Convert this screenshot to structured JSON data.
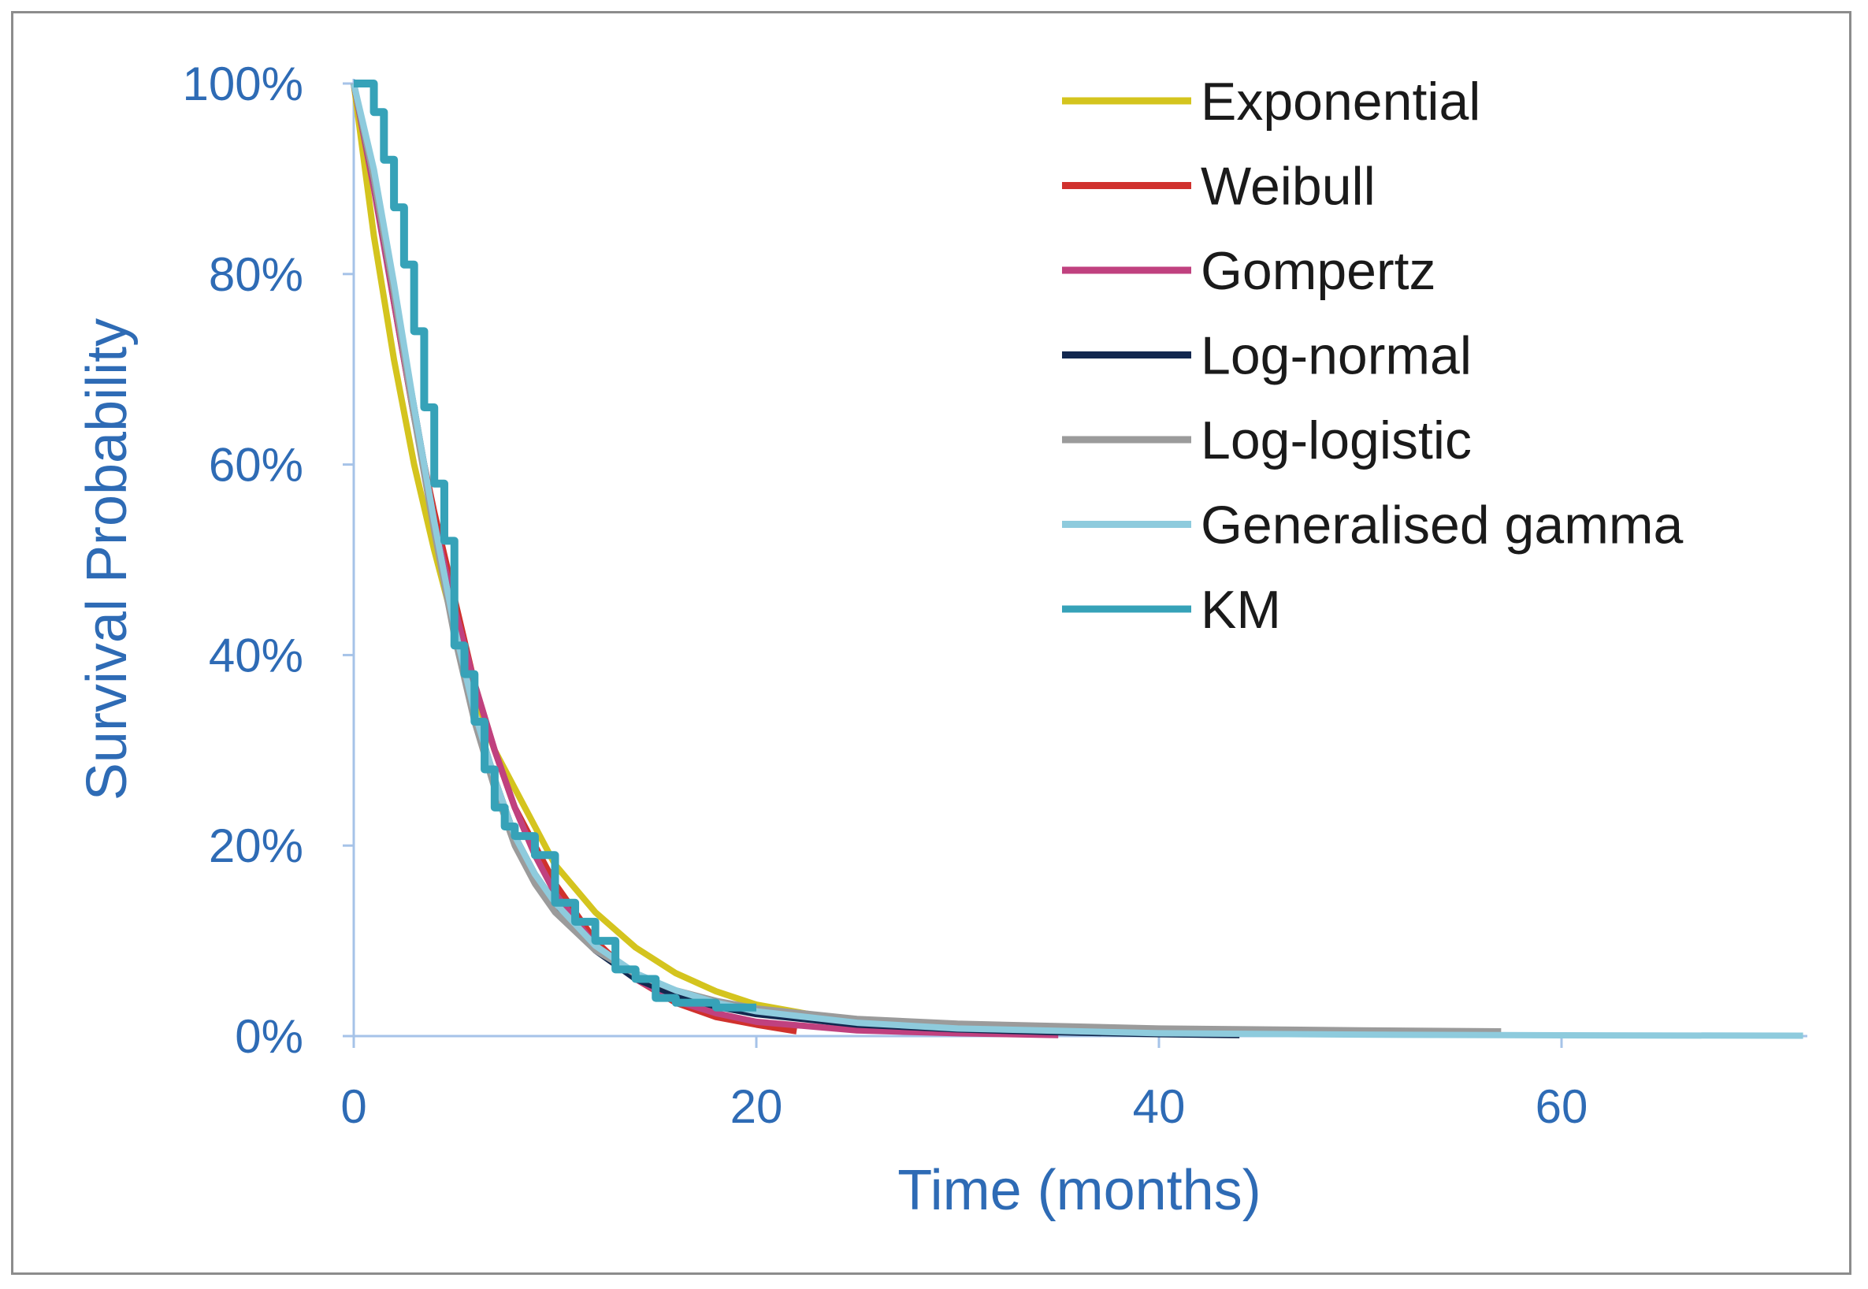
{
  "chart_data": {
    "type": "line",
    "xlabel": "Time (months)",
    "ylabel": "Survival Probability",
    "xlim": [
      0,
      72
    ],
    "ylim": [
      0,
      1
    ],
    "x_ticks": [
      "0",
      "20",
      "40",
      "60"
    ],
    "x_tick_values": [
      0,
      20,
      40,
      60
    ],
    "y_ticks": [
      "0%",
      "20%",
      "40%",
      "60%",
      "80%",
      "100%"
    ],
    "y_tick_values": [
      0,
      0.2,
      0.4,
      0.6,
      0.8,
      1.0
    ],
    "grid": false,
    "legend_position": "top-right",
    "series": [
      {
        "name": "Exponential",
        "color": "#d4c41e",
        "step": false,
        "x": [
          0,
          1,
          2,
          3,
          4,
          5,
          6,
          7,
          8,
          9,
          10,
          12,
          14,
          16,
          18,
          20,
          25,
          30
        ],
        "y": [
          1,
          0.84,
          0.71,
          0.6,
          0.51,
          0.43,
          0.36,
          0.3,
          0.26,
          0.22,
          0.18,
          0.13,
          0.093,
          0.066,
          0.047,
          0.033,
          0.014,
          0.006
        ]
      },
      {
        "name": "Weibull",
        "color": "#d0312d",
        "step": false,
        "x": [
          0,
          1,
          2,
          3,
          4,
          5,
          6,
          7,
          8,
          9,
          10,
          12,
          14,
          16,
          18,
          20,
          22
        ],
        "y": [
          1,
          0.9,
          0.77,
          0.65,
          0.55,
          0.46,
          0.37,
          0.3,
          0.24,
          0.2,
          0.16,
          0.1,
          0.06,
          0.035,
          0.02,
          0.012,
          0.005
        ]
      },
      {
        "name": "Gompertz",
        "color": "#c0417f",
        "step": false,
        "x": [
          0,
          1,
          2,
          3,
          4,
          5,
          6,
          7,
          8,
          9,
          10,
          12,
          14,
          16,
          18,
          20,
          25,
          30,
          35
        ],
        "y": [
          1,
          0.89,
          0.77,
          0.65,
          0.54,
          0.45,
          0.37,
          0.3,
          0.24,
          0.19,
          0.15,
          0.095,
          0.06,
          0.037,
          0.024,
          0.015,
          0.006,
          0.003,
          0.001
        ]
      },
      {
        "name": "Log-normal",
        "color": "#12284f",
        "step": false,
        "x": [
          0,
          1,
          2,
          3,
          4,
          5,
          6,
          7,
          8,
          9,
          10,
          12,
          14,
          16,
          18,
          20,
          25,
          30,
          35,
          40,
          44
        ],
        "y": [
          1,
          0.9,
          0.78,
          0.66,
          0.54,
          0.43,
          0.34,
          0.27,
          0.21,
          0.17,
          0.14,
          0.09,
          0.06,
          0.043,
          0.031,
          0.023,
          0.012,
          0.007,
          0.004,
          0.002,
          0.001
        ]
      },
      {
        "name": "Log-logistic",
        "color": "#9b9b9b",
        "step": false,
        "x": [
          0,
          1,
          2,
          3,
          4,
          5,
          6,
          7,
          8,
          9,
          10,
          12,
          14,
          16,
          18,
          20,
          25,
          30,
          40,
          50,
          57
        ],
        "y": [
          1,
          0.9,
          0.78,
          0.65,
          0.53,
          0.42,
          0.33,
          0.26,
          0.2,
          0.16,
          0.13,
          0.09,
          0.065,
          0.048,
          0.037,
          0.029,
          0.018,
          0.013,
          0.008,
          0.006,
          0.005
        ]
      },
      {
        "name": "Generalised gamma",
        "color": "#8ecbdd",
        "step": false,
        "x": [
          0,
          1,
          2,
          3,
          4,
          5,
          6,
          7,
          8,
          9,
          10,
          12,
          14,
          16,
          18,
          20,
          25,
          30,
          40,
          50,
          60,
          72
        ],
        "y": [
          1,
          0.91,
          0.79,
          0.66,
          0.54,
          0.43,
          0.34,
          0.27,
          0.21,
          0.17,
          0.14,
          0.095,
          0.066,
          0.048,
          0.035,
          0.026,
          0.014,
          0.008,
          0.003,
          0.0015,
          0.0008,
          0.0004
        ]
      },
      {
        "name": "KM",
        "color": "#36a2b8",
        "step": true,
        "x": [
          0,
          1,
          1.5,
          2,
          2.5,
          3,
          3.5,
          4,
          4.5,
          5,
          5.5,
          6,
          6.5,
          7,
          7.5,
          8,
          9,
          10,
          11,
          12,
          13,
          14,
          15,
          16,
          18,
          20
        ],
        "y": [
          1,
          0.97,
          0.92,
          0.87,
          0.81,
          0.74,
          0.66,
          0.58,
          0.52,
          0.41,
          0.38,
          0.33,
          0.28,
          0.24,
          0.22,
          0.21,
          0.19,
          0.14,
          0.12,
          0.1,
          0.07,
          0.06,
          0.04,
          0.035,
          0.03,
          0.03
        ]
      }
    ]
  }
}
